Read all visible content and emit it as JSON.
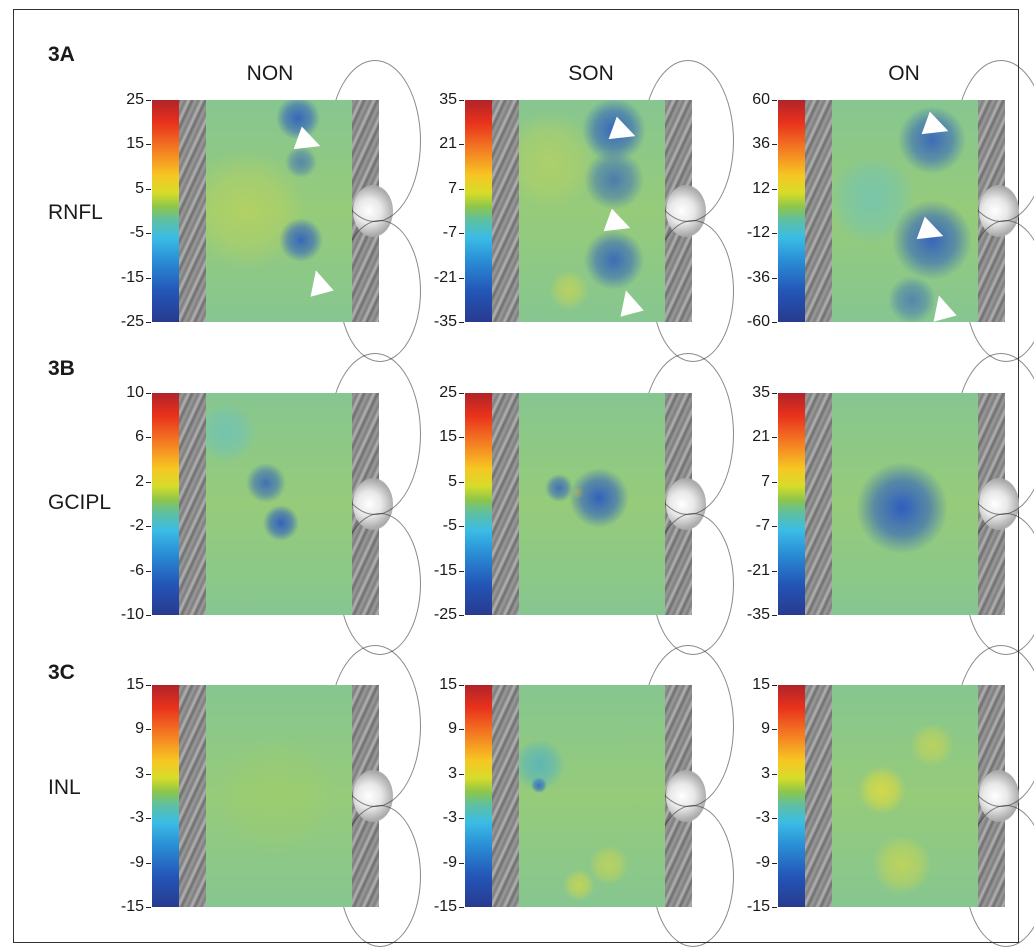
{
  "sections": [
    {
      "label": "3A",
      "row_label": "RNFL",
      "scales": [
        [
          "25",
          "15",
          "5",
          "-5",
          "-15",
          "-25"
        ],
        [
          "35",
          "21",
          "7",
          "-7",
          "-21",
          "-35"
        ],
        [
          "60",
          "36",
          "12",
          "-12",
          "-36",
          "-60"
        ]
      ]
    },
    {
      "label": "3B",
      "row_label": "GCIPL",
      "scales": [
        [
          "10",
          "6",
          "2",
          "-2",
          "-6",
          "-10"
        ],
        [
          "25",
          "15",
          "5",
          "-5",
          "-15",
          "-25"
        ],
        [
          "35",
          "21",
          "7",
          "-7",
          "-21",
          "-35"
        ]
      ]
    },
    {
      "label": "3C",
      "row_label": "INL",
      "scales": [
        [
          "15",
          "9",
          "3",
          "-3",
          "-9",
          "-15"
        ],
        [
          "15",
          "9",
          "3",
          "-3",
          "-9",
          "-15"
        ],
        [
          "15",
          "9",
          "3",
          "-3",
          "-9",
          "-15"
        ]
      ]
    }
  ],
  "columns": [
    "NON",
    "SON",
    "ON"
  ],
  "colors": {
    "colorbar": [
      "#b0232a",
      "#e8311c",
      "#f47a22",
      "#f7c623",
      "#8ec64a",
      "#3bbce6",
      "#2a8fd6",
      "#283a8f"
    ],
    "map_base": "#7fbf8a",
    "map_thin": "#2e5cc0",
    "map_thick": "#e4dc3a"
  },
  "markers": "white arrowheads"
}
